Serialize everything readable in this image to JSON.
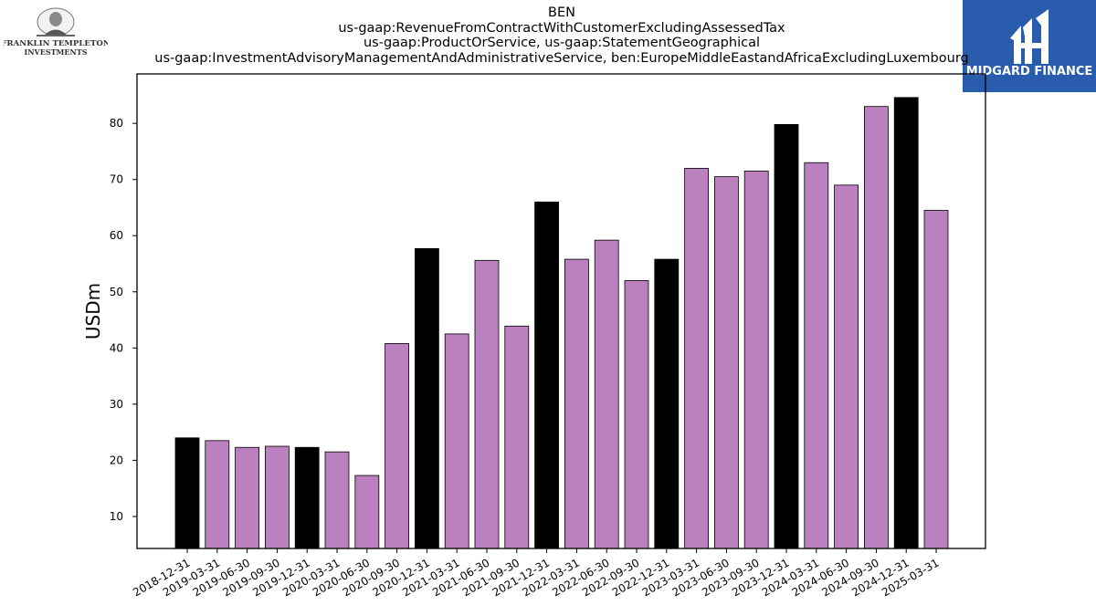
{
  "branding": {
    "left_logo_line1": "FRANKLIN TEMPLETON",
    "left_logo_line2": "INVESTMENTS",
    "right_logo_text": "MIDGARD FINANCE",
    "right_logo_color": "#2a5cad"
  },
  "chart_data": {
    "type": "bar",
    "title_lines": [
      "BEN",
      "us-gaap:RevenueFromContractWithCustomerExcludingAssessedTax",
      "us-gaap:ProductOrService, us-gaap:StatementGeographical",
      "us-gaap:InvestmentAdvisoryManagementAndAdministrativeService, ben:EuropeMiddleEastandAfricaExcludingLuxembourg"
    ],
    "xlabel": "",
    "ylabel": "USDm",
    "ylim": [
      4.3,
      88.8
    ],
    "yticks": [
      10,
      20,
      30,
      40,
      50,
      60,
      70,
      80
    ],
    "grid": false,
    "colors": {
      "quarter": "#bb80bf",
      "year_end": "#000000",
      "edge": "#000000"
    },
    "categories": [
      "2018-12-31",
      "2019-03-31",
      "2019-06-30",
      "2019-09-30",
      "2019-12-31",
      "2020-03-31",
      "2020-06-30",
      "2020-09-30",
      "2020-12-31",
      "2021-03-31",
      "2021-06-30",
      "2021-09-30",
      "2021-12-31",
      "2022-03-31",
      "2022-06-30",
      "2022-09-30",
      "2022-12-31",
      "2023-03-31",
      "2023-06-30",
      "2023-09-30",
      "2023-12-31",
      "2024-03-31",
      "2024-06-30",
      "2024-09-30",
      "2024-12-31",
      "2025-03-31"
    ],
    "values": [
      24.0,
      23.5,
      22.3,
      22.5,
      22.3,
      21.5,
      17.3,
      40.8,
      57.7,
      42.5,
      55.6,
      43.9,
      66.0,
      55.8,
      59.2,
      52.0,
      55.8,
      72.0,
      70.5,
      71.5,
      79.8,
      73.0,
      69.0,
      83.0,
      84.6,
      64.5
    ],
    "year_end_flags": [
      true,
      false,
      false,
      false,
      true,
      false,
      false,
      false,
      true,
      false,
      false,
      false,
      true,
      false,
      false,
      false,
      true,
      false,
      false,
      false,
      true,
      false,
      false,
      false,
      true,
      false
    ]
  }
}
